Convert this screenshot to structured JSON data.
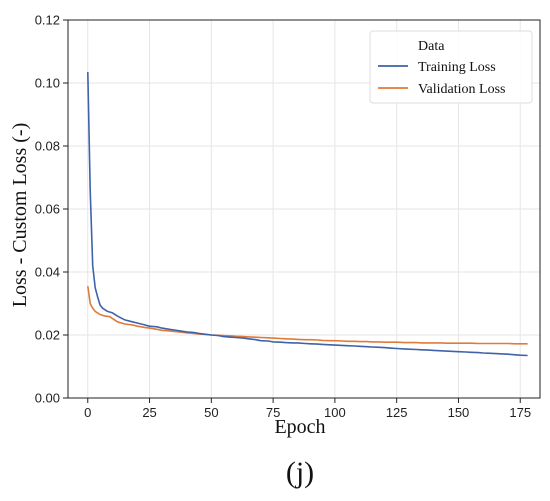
{
  "chart_data": {
    "type": "line",
    "title": "",
    "xlabel": "Epoch",
    "ylabel": "Loss - Custom Loss (-)",
    "xlim": [
      -8,
      183
    ],
    "ylim": [
      0.0,
      0.12
    ],
    "xticks": [
      0,
      25,
      50,
      75,
      100,
      125,
      150,
      175
    ],
    "yticks": [
      "0.00",
      "0.02",
      "0.04",
      "0.06",
      "0.08",
      "0.10",
      "0.12"
    ],
    "grid": true,
    "legend": {
      "title": "Data",
      "placement": "top-right"
    },
    "series": [
      {
        "name": "Training Loss",
        "color": "#3e63a8",
        "points": [
          [
            0,
            0.1035
          ],
          [
            1,
            0.066
          ],
          [
            2,
            0.042
          ],
          [
            3,
            0.035
          ],
          [
            4,
            0.032
          ],
          [
            5,
            0.0295
          ],
          [
            6,
            0.0285
          ],
          [
            8,
            0.0275
          ],
          [
            10,
            0.027
          ],
          [
            12,
            0.026
          ],
          [
            15,
            0.0248
          ],
          [
            18,
            0.0242
          ],
          [
            20,
            0.0238
          ],
          [
            23,
            0.0232
          ],
          [
            25,
            0.0228
          ],
          [
            28,
            0.0226
          ],
          [
            30,
            0.0222
          ],
          [
            33,
            0.0218
          ],
          [
            35,
            0.0216
          ],
          [
            38,
            0.0212
          ],
          [
            40,
            0.021
          ],
          [
            43,
            0.0208
          ],
          [
            45,
            0.0205
          ],
          [
            48,
            0.0202
          ],
          [
            50,
            0.02
          ],
          [
            53,
            0.0198
          ],
          [
            55,
            0.0195
          ],
          [
            58,
            0.0193
          ],
          [
            60,
            0.0192
          ],
          [
            63,
            0.019
          ],
          [
            65,
            0.0188
          ],
          [
            68,
            0.0185
          ],
          [
            70,
            0.0182
          ],
          [
            73,
            0.0181
          ],
          [
            75,
            0.0178
          ],
          [
            78,
            0.0177
          ],
          [
            80,
            0.0176
          ],
          [
            83,
            0.0175
          ],
          [
            85,
            0.0175
          ],
          [
            88,
            0.0173
          ],
          [
            90,
            0.0172
          ],
          [
            93,
            0.0171
          ],
          [
            95,
            0.017
          ],
          [
            98,
            0.0169
          ],
          [
            100,
            0.0168
          ],
          [
            103,
            0.0167
          ],
          [
            105,
            0.0166
          ],
          [
            108,
            0.0165
          ],
          [
            110,
            0.0164
          ],
          [
            113,
            0.0163
          ],
          [
            115,
            0.0162
          ],
          [
            118,
            0.0161
          ],
          [
            120,
            0.016
          ],
          [
            123,
            0.0158
          ],
          [
            125,
            0.0157
          ],
          [
            128,
            0.0156
          ],
          [
            130,
            0.0155
          ],
          [
            133,
            0.0154
          ],
          [
            135,
            0.0153
          ],
          [
            138,
            0.0152
          ],
          [
            140,
            0.0151
          ],
          [
            143,
            0.015
          ],
          [
            145,
            0.0149
          ],
          [
            148,
            0.0148
          ],
          [
            150,
            0.0147
          ],
          [
            153,
            0.0146
          ],
          [
            155,
            0.0145
          ],
          [
            158,
            0.0144
          ],
          [
            160,
            0.0143
          ],
          [
            163,
            0.0142
          ],
          [
            165,
            0.0141
          ],
          [
            168,
            0.014
          ],
          [
            170,
            0.0139
          ],
          [
            173,
            0.0137
          ],
          [
            175,
            0.0136
          ],
          [
            178,
            0.0135
          ]
        ]
      },
      {
        "name": "Validation Loss",
        "color": "#e07a3a",
        "points": [
          [
            0,
            0.0355
          ],
          [
            1,
            0.03
          ],
          [
            2,
            0.0285
          ],
          [
            3,
            0.0275
          ],
          [
            5,
            0.0265
          ],
          [
            7,
            0.026
          ],
          [
            9,
            0.0258
          ],
          [
            10,
            0.0252
          ],
          [
            12,
            0.0242
          ],
          [
            15,
            0.0235
          ],
          [
            18,
            0.0232
          ],
          [
            20,
            0.0228
          ],
          [
            23,
            0.0224
          ],
          [
            25,
            0.0222
          ],
          [
            28,
            0.0218
          ],
          [
            30,
            0.0215
          ],
          [
            33,
            0.0213
          ],
          [
            35,
            0.0211
          ],
          [
            38,
            0.0209
          ],
          [
            40,
            0.0207
          ],
          [
            43,
            0.0205
          ],
          [
            45,
            0.0203
          ],
          [
            48,
            0.0202
          ],
          [
            50,
            0.02
          ],
          [
            53,
            0.0199
          ],
          [
            55,
            0.0198
          ],
          [
            58,
            0.0197
          ],
          [
            60,
            0.0196
          ],
          [
            63,
            0.0195
          ],
          [
            65,
            0.0194
          ],
          [
            68,
            0.0193
          ],
          [
            70,
            0.0192
          ],
          [
            73,
            0.0191
          ],
          [
            75,
            0.019
          ],
          [
            78,
            0.0189
          ],
          [
            80,
            0.0188
          ],
          [
            83,
            0.0187
          ],
          [
            85,
            0.0186
          ],
          [
            88,
            0.0185
          ],
          [
            90,
            0.0185
          ],
          [
            93,
            0.0184
          ],
          [
            95,
            0.0183
          ],
          [
            98,
            0.0182
          ],
          [
            100,
            0.0182
          ],
          [
            103,
            0.0181
          ],
          [
            105,
            0.018
          ],
          [
            108,
            0.018
          ],
          [
            110,
            0.0179
          ],
          [
            113,
            0.0179
          ],
          [
            115,
            0.0178
          ],
          [
            118,
            0.0178
          ],
          [
            120,
            0.0177
          ],
          [
            123,
            0.0177
          ],
          [
            125,
            0.0177
          ],
          [
            128,
            0.0176
          ],
          [
            130,
            0.0176
          ],
          [
            133,
            0.0176
          ],
          [
            135,
            0.0175
          ],
          [
            138,
            0.0175
          ],
          [
            140,
            0.0175
          ],
          [
            143,
            0.0175
          ],
          [
            145,
            0.0174
          ],
          [
            148,
            0.0174
          ],
          [
            150,
            0.0174
          ],
          [
            153,
            0.0174
          ],
          [
            155,
            0.0174
          ],
          [
            158,
            0.0173
          ],
          [
            160,
            0.0173
          ],
          [
            163,
            0.0173
          ],
          [
            165,
            0.0173
          ],
          [
            168,
            0.0173
          ],
          [
            170,
            0.0173
          ],
          [
            173,
            0.0172
          ],
          [
            175,
            0.0172
          ],
          [
            178,
            0.0172
          ]
        ]
      }
    ]
  },
  "panel_label": "(j)"
}
